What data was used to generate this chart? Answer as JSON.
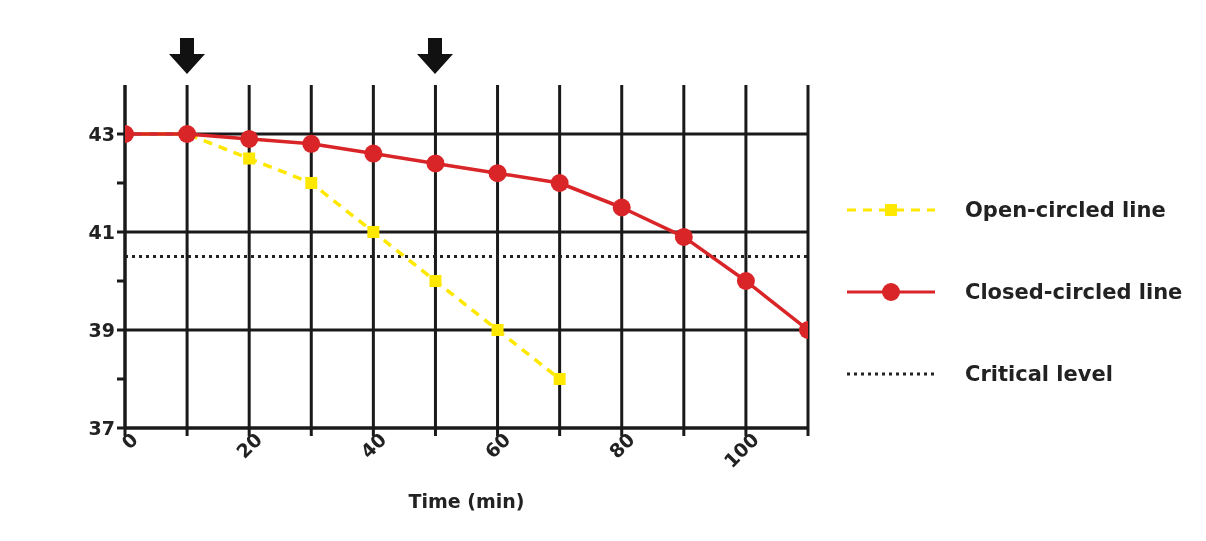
{
  "chart_data": {
    "type": "line",
    "xlabel": "Time (min)",
    "x": [
      0,
      10,
      20,
      30,
      40,
      50,
      60,
      70,
      80,
      90,
      100,
      110
    ],
    "series": [
      {
        "name": "Open-circled line",
        "color": "#ffe800",
        "marker": "square",
        "line_style": "dashed",
        "values": [
          43,
          43,
          42.5,
          42,
          41,
          40,
          39,
          38,
          null,
          null,
          null,
          null
        ]
      },
      {
        "name": "Closed-circled line",
        "color": "#d92528",
        "marker": "circle",
        "line_style": "solid",
        "values": [
          43,
          43,
          42.9,
          42.8,
          42.6,
          42.4,
          42.2,
          42,
          41.5,
          40.9,
          40,
          39
        ]
      }
    ],
    "ref_lines": [
      {
        "axis": "y",
        "value": 40.5,
        "label": "Critical level",
        "color": "#222222",
        "line_style": "dotted"
      }
    ],
    "xlim": [
      0,
      110
    ],
    "xticks": [
      0,
      {
        "value": 10,
        "label": null
      },
      20,
      {
        "value": 30,
        "label": null
      },
      40,
      {
        "value": 50,
        "label": null
      },
      60,
      {
        "value": 70,
        "label": null
      },
      80,
      {
        "value": 90,
        "label": null
      },
      100,
      {
        "value": 110,
        "label": null
      }
    ],
    "ylim": [
      37,
      44
    ],
    "yticks": [
      37,
      {
        "value": 38,
        "label": null
      },
      39,
      {
        "value": 40,
        "label": null
      },
      41,
      {
        "value": 42,
        "label": null
      },
      43
    ],
    "grid": true,
    "legend": "right"
  }
}
